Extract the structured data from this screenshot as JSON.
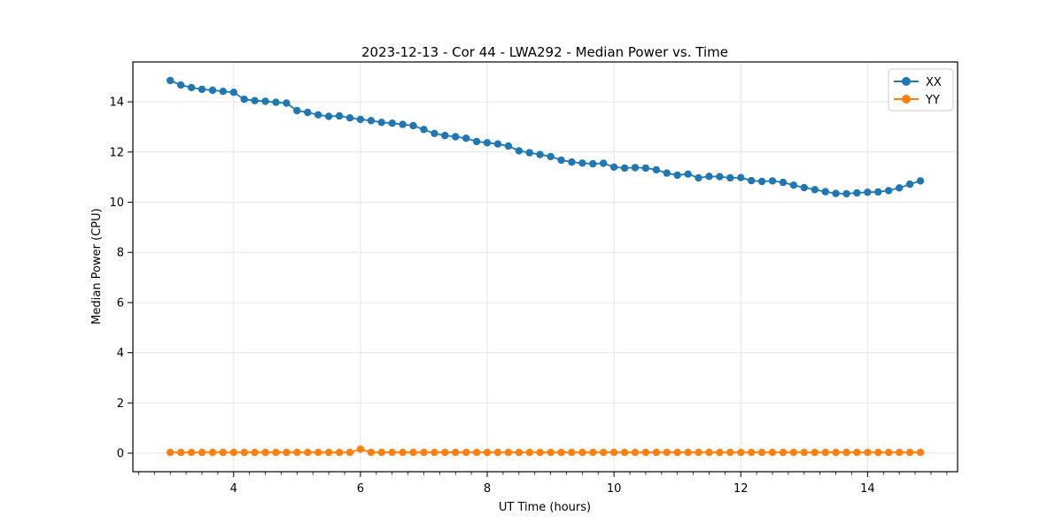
{
  "figure": {
    "background": "#ffffff",
    "plot_border_color": "#000000",
    "grid_color": "#e6e6e6"
  },
  "chart_data": {
    "type": "line",
    "title": "2023-12-13 - Cor 44 - LWA292 - Median Power vs. Time",
    "xlabel": "UT Time (hours)",
    "ylabel": "Median Power (CPU)",
    "xlim": [
      2.41,
      15.42
    ],
    "ylim": [
      -0.74,
      15.59
    ],
    "x_major_ticks": [
      4,
      6,
      8,
      10,
      12,
      14
    ],
    "x_minor_tick_step": 0.25,
    "y_major_ticks": [
      0,
      2,
      4,
      6,
      8,
      10,
      12,
      14
    ],
    "grid": true,
    "legend_position": "top-right",
    "x": [
      3.0,
      3.167,
      3.333,
      3.5,
      3.667,
      3.833,
      4.0,
      4.167,
      4.333,
      4.5,
      4.667,
      4.833,
      5.0,
      5.167,
      5.333,
      5.5,
      5.667,
      5.833,
      6.0,
      6.167,
      6.333,
      6.5,
      6.667,
      6.833,
      7.0,
      7.167,
      7.333,
      7.5,
      7.667,
      7.833,
      8.0,
      8.167,
      8.333,
      8.5,
      8.667,
      8.833,
      9.0,
      9.167,
      9.333,
      9.5,
      9.667,
      9.833,
      10.0,
      10.167,
      10.333,
      10.5,
      10.667,
      10.833,
      11.0,
      11.167,
      11.333,
      11.5,
      11.667,
      11.833,
      12.0,
      12.167,
      12.333,
      12.5,
      12.667,
      12.833,
      13.0,
      13.167,
      13.333,
      13.5,
      13.667,
      13.833,
      14.0,
      14.167,
      14.333,
      14.5,
      14.667,
      14.833
    ],
    "series": [
      {
        "name": "XX",
        "color": "#1f77b4",
        "values": [
          14.85,
          14.67,
          14.57,
          14.5,
          14.46,
          14.42,
          14.38,
          14.1,
          14.05,
          14.02,
          13.98,
          13.95,
          13.65,
          13.58,
          13.48,
          13.42,
          13.44,
          13.36,
          13.3,
          13.25,
          13.18,
          13.15,
          13.1,
          13.05,
          12.9,
          12.74,
          12.66,
          12.61,
          12.55,
          12.42,
          12.37,
          12.32,
          12.24,
          12.05,
          11.97,
          11.9,
          11.82,
          11.68,
          11.6,
          11.56,
          11.53,
          11.55,
          11.4,
          11.36,
          11.38,
          11.36,
          11.29,
          11.16,
          11.08,
          11.12,
          10.97,
          11.03,
          11.02,
          10.97,
          10.98,
          10.86,
          10.83,
          10.85,
          10.79,
          10.68,
          10.58,
          10.5,
          10.42,
          10.35,
          10.34,
          10.37,
          10.4,
          10.41,
          10.46,
          10.57,
          10.72,
          10.85
        ]
      },
      {
        "name": "YY",
        "color": "#ff7f0e",
        "values": [
          0.03,
          0.03,
          0.03,
          0.03,
          0.03,
          0.03,
          0.03,
          0.03,
          0.03,
          0.03,
          0.03,
          0.03,
          0.03,
          0.03,
          0.03,
          0.03,
          0.03,
          0.03,
          0.16,
          0.03,
          0.03,
          0.03,
          0.03,
          0.03,
          0.03,
          0.03,
          0.03,
          0.03,
          0.03,
          0.03,
          0.03,
          0.03,
          0.03,
          0.03,
          0.03,
          0.03,
          0.03,
          0.03,
          0.03,
          0.03,
          0.03,
          0.03,
          0.03,
          0.03,
          0.03,
          0.03,
          0.03,
          0.03,
          0.03,
          0.03,
          0.03,
          0.03,
          0.03,
          0.03,
          0.03,
          0.03,
          0.03,
          0.03,
          0.03,
          0.03,
          0.03,
          0.03,
          0.03,
          0.03,
          0.03,
          0.03,
          0.03,
          0.03,
          0.03,
          0.03,
          0.03,
          0.03
        ]
      }
    ]
  },
  "legend": {
    "labels": [
      "XX",
      "YY"
    ]
  }
}
